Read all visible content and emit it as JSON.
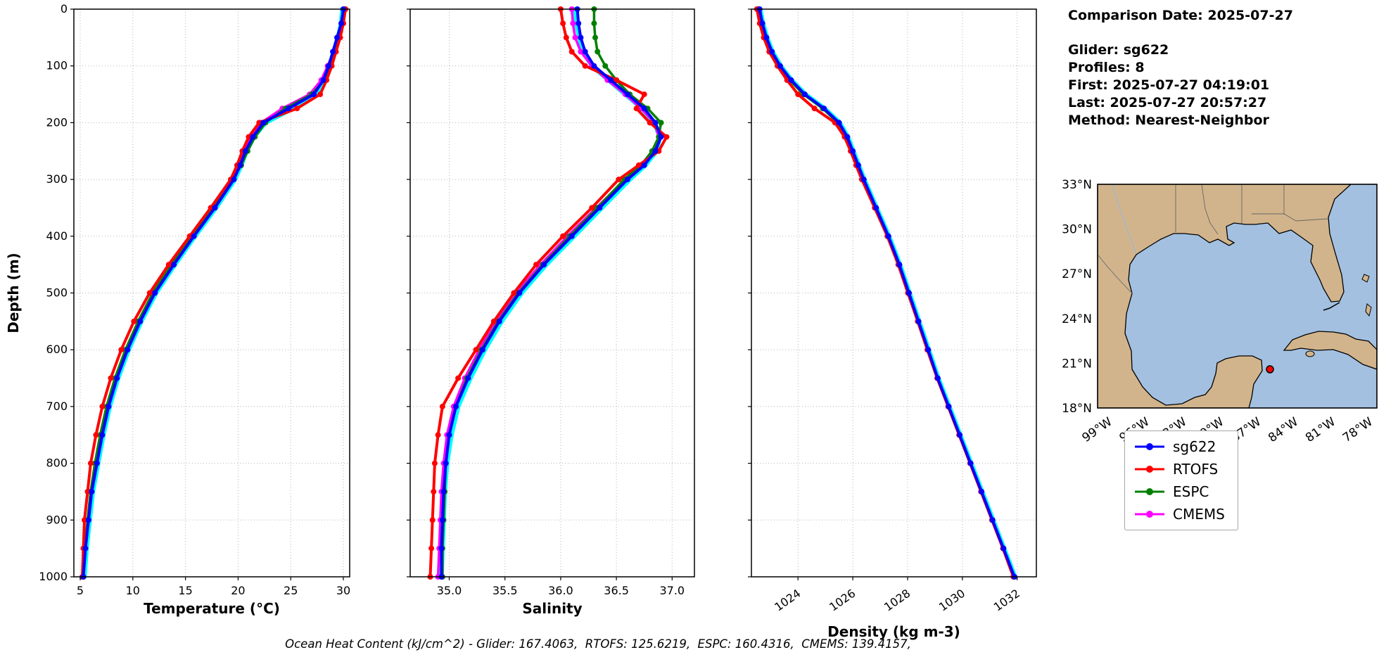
{
  "info_panel": {
    "comparison_date": "Comparison Date: 2025-07-27",
    "glider": "Glider: sg622",
    "profiles": "Profiles: 8",
    "first": "First: 2025-07-27 04:19:01",
    "last": "Last: 2025-07-27 20:57:27",
    "method": "Method: Nearest-Neighbor"
  },
  "footer": {
    "ohc_text": "Ocean Heat Content (kJ/cm^2) - Glider: 167.4063,  RTOFS: 125.6219,  ESPC: 160.4316,  CMEMS: 139.4157,"
  },
  "legend": {
    "items": [
      {
        "label": "sg622",
        "color": "#0000ff"
      },
      {
        "label": "RTOFS",
        "color": "#ff0000"
      },
      {
        "label": "ESPC",
        "color": "#008000"
      },
      {
        "label": "CMEMS",
        "color": "#ff00ff"
      }
    ]
  },
  "map": {
    "land_color": "#d2b48c",
    "ocean_color": "#a3c0e0",
    "marker_color": "#ff0000",
    "lat_ticks": [
      "33°N",
      "30°N",
      "27°N",
      "24°N",
      "21°N",
      "18°N"
    ],
    "lon_ticks": [
      "99°W",
      "96°W",
      "93°W",
      "90°W",
      "87°W",
      "84°W",
      "81°W",
      "78°W"
    ]
  },
  "chart_data": {
    "type": "line",
    "ylabel": "Depth (m)",
    "ylim": [
      0,
      1000
    ],
    "yticks": [
      0,
      100,
      200,
      300,
      400,
      500,
      600,
      700,
      800,
      900,
      1000
    ],
    "ytick_labels": [
      "0",
      "100",
      "200",
      "300",
      "400",
      "500",
      "600",
      "700",
      "800",
      "900",
      "1000"
    ],
    "grid": true,
    "depths": [
      0,
      25,
      50,
      75,
      100,
      125,
      150,
      175,
      200,
      225,
      250,
      275,
      300,
      350,
      400,
      450,
      500,
      550,
      600,
      650,
      700,
      750,
      800,
      850,
      900,
      950,
      1000
    ],
    "panels": [
      {
        "id": "temperature",
        "xlabel": "Temperature (°C)",
        "xlim": [
          4.4,
          30.6
        ],
        "xticks": [
          5,
          10,
          15,
          20,
          25,
          30
        ],
        "xtick_labels": [
          "5",
          "10",
          "15",
          "20",
          "25",
          "30"
        ],
        "rotate_xticks": false
      },
      {
        "id": "salinity",
        "xlabel": "Salinity",
        "xlim": [
          34.65,
          37.2
        ],
        "xticks": [
          35.0,
          35.5,
          36.0,
          36.5,
          37.0
        ],
        "xtick_labels": [
          "35.0",
          "35.5",
          "36.0",
          "36.5",
          "37.0"
        ],
        "rotate_xticks": false
      },
      {
        "id": "density",
        "xlabel": "Density (kg m-3)",
        "xlim": [
          1022.3,
          1032.7
        ],
        "xticks": [
          1024,
          1026,
          1028,
          1030,
          1032
        ],
        "xtick_labels": [
          "1024",
          "1026",
          "1028",
          "1030",
          "1032"
        ],
        "rotate_xticks": true
      }
    ],
    "series": [
      {
        "name": "glider-raw-profiles",
        "color": "#00ffff",
        "line_width": 6.5,
        "markers": false,
        "in_legend": false,
        "values": {
          "temperature": [
            29.9,
            29.8,
            29.5,
            29.1,
            28.7,
            28.2,
            27.4,
            25.2,
            22.6,
            21.5,
            20.8,
            20.3,
            19.7,
            17.9,
            15.9,
            14.0,
            12.2,
            10.8,
            9.6,
            8.6,
            7.8,
            7.2,
            6.7,
            6.2,
            5.9,
            5.6,
            5.4
          ],
          "salinity": [
            36.12,
            36.14,
            36.17,
            36.2,
            36.28,
            36.43,
            36.58,
            36.73,
            36.84,
            36.89,
            36.86,
            36.76,
            36.62,
            36.37,
            36.12,
            35.87,
            35.65,
            35.47,
            35.32,
            35.19,
            35.08,
            35.02,
            34.98,
            34.96,
            34.95,
            34.94,
            34.93
          ],
          "density": [
            1022.62,
            1022.72,
            1022.87,
            1023.07,
            1023.37,
            1023.77,
            1024.27,
            1024.97,
            1025.52,
            1025.82,
            1026.02,
            1026.22,
            1026.42,
            1026.87,
            1027.32,
            1027.72,
            1028.07,
            1028.42,
            1028.77,
            1029.12,
            1029.52,
            1029.92,
            1030.32,
            1030.72,
            1031.12,
            1031.52,
            1031.92
          ]
        }
      },
      {
        "name": "CMEMS",
        "color": "#ff00ff",
        "line_width": 3.5,
        "markers": true,
        "in_legend": true,
        "values": {
          "temperature": [
            30.2,
            30.0,
            29.6,
            29.1,
            28.5,
            27.9,
            26.8,
            24.2,
            22.2,
            21.2,
            20.6,
            20.1,
            19.4,
            17.7,
            15.7,
            13.8,
            12.0,
            10.6,
            9.4,
            8.4,
            7.6,
            7.0,
            6.5,
            6.0,
            5.7,
            5.4,
            5.2
          ],
          "salinity": [
            36.1,
            36.11,
            36.13,
            36.18,
            36.28,
            36.42,
            36.58,
            36.72,
            36.84,
            36.88,
            36.83,
            36.73,
            36.58,
            36.32,
            36.06,
            35.82,
            35.6,
            35.42,
            35.27,
            35.14,
            35.04,
            34.98,
            34.95,
            34.93,
            34.92,
            34.91,
            34.9
          ],
          "density": [
            1022.58,
            1022.68,
            1022.83,
            1023.03,
            1023.33,
            1023.72,
            1024.22,
            1024.92,
            1025.48,
            1025.79,
            1025.99,
            1026.19,
            1026.39,
            1026.85,
            1027.3,
            1027.7,
            1028.05,
            1028.4,
            1028.75,
            1029.1,
            1029.5,
            1029.9,
            1030.3,
            1030.7,
            1031.1,
            1031.5,
            1031.9
          ]
        }
      },
      {
        "name": "ESPC",
        "color": "#008000",
        "line_width": 3.5,
        "markers": true,
        "in_legend": true,
        "values": {
          "temperature": [
            30.1,
            29.9,
            29.5,
            29.1,
            28.7,
            28.2,
            27.0,
            24.5,
            22.6,
            21.6,
            20.9,
            20.3,
            19.5,
            17.6,
            15.6,
            13.7,
            11.9,
            10.5,
            9.3,
            8.3,
            7.5,
            6.9,
            6.4,
            6.0,
            5.7,
            5.5,
            5.3
          ],
          "salinity": [
            36.3,
            36.3,
            36.31,
            36.33,
            36.4,
            36.5,
            36.62,
            36.78,
            36.9,
            36.88,
            36.82,
            36.72,
            36.57,
            36.33,
            36.08,
            35.84,
            35.62,
            35.44,
            35.29,
            35.16,
            35.06,
            35.0,
            34.97,
            34.96,
            34.95,
            34.94,
            34.94
          ],
          "density": [
            1022.55,
            1022.65,
            1022.8,
            1023.0,
            1023.3,
            1023.7,
            1024.2,
            1024.9,
            1025.45,
            1025.78,
            1025.98,
            1026.18,
            1026.38,
            1026.84,
            1027.29,
            1027.69,
            1028.04,
            1028.39,
            1028.74,
            1029.09,
            1029.49,
            1029.89,
            1030.29,
            1030.69,
            1031.09,
            1031.49,
            1031.89
          ]
        }
      },
      {
        "name": "RTOFS",
        "color": "#ff0000",
        "line_width": 4,
        "markers": true,
        "in_legend": true,
        "values": {
          "temperature": [
            30.2,
            30.0,
            29.7,
            29.3,
            28.9,
            28.4,
            27.8,
            25.6,
            22.0,
            21.0,
            20.4,
            19.9,
            19.3,
            17.4,
            15.4,
            13.4,
            11.6,
            10.1,
            8.9,
            7.9,
            7.1,
            6.5,
            6.0,
            5.7,
            5.4,
            5.3,
            5.2
          ],
          "salinity": [
            36.0,
            36.02,
            36.05,
            36.1,
            36.22,
            36.5,
            36.75,
            36.68,
            36.8,
            36.95,
            36.88,
            36.7,
            36.52,
            36.28,
            36.02,
            35.78,
            35.58,
            35.4,
            35.24,
            35.08,
            34.94,
            34.9,
            34.87,
            34.86,
            34.85,
            34.84,
            34.83
          ],
          "density": [
            1022.5,
            1022.6,
            1022.75,
            1022.95,
            1023.25,
            1023.6,
            1024.0,
            1024.6,
            1025.35,
            1025.7,
            1025.92,
            1026.12,
            1026.33,
            1026.8,
            1027.26,
            1027.66,
            1028.01,
            1028.37,
            1028.72,
            1029.08,
            1029.48,
            1029.88,
            1030.28,
            1030.68,
            1031.08,
            1031.48,
            1031.86
          ]
        }
      },
      {
        "name": "sg622",
        "color": "#0000ff",
        "line_width": 4,
        "markers": true,
        "in_legend": true,
        "values": {
          "temperature": [
            30.0,
            29.8,
            29.4,
            29.0,
            28.6,
            28.1,
            27.2,
            24.8,
            22.4,
            21.4,
            20.7,
            20.2,
            19.6,
            17.8,
            15.8,
            13.9,
            12.1,
            10.7,
            9.5,
            8.5,
            7.7,
            7.1,
            6.6,
            6.1,
            5.8,
            5.5,
            5.3
          ],
          "salinity": [
            36.15,
            36.16,
            36.18,
            36.22,
            36.3,
            36.45,
            36.6,
            36.75,
            36.85,
            36.9,
            36.85,
            36.75,
            36.6,
            36.35,
            36.1,
            35.85,
            35.63,
            35.45,
            35.3,
            35.17,
            35.06,
            35.0,
            34.97,
            34.95,
            34.94,
            34.93,
            34.93
          ],
          "density": [
            1022.6,
            1022.7,
            1022.85,
            1023.05,
            1023.35,
            1023.75,
            1024.25,
            1024.95,
            1025.5,
            1025.8,
            1026.0,
            1026.2,
            1026.4,
            1026.85,
            1027.3,
            1027.7,
            1028.05,
            1028.4,
            1028.75,
            1029.1,
            1029.5,
            1029.9,
            1030.3,
            1030.7,
            1031.1,
            1031.5,
            1031.9
          ]
        }
      }
    ]
  }
}
